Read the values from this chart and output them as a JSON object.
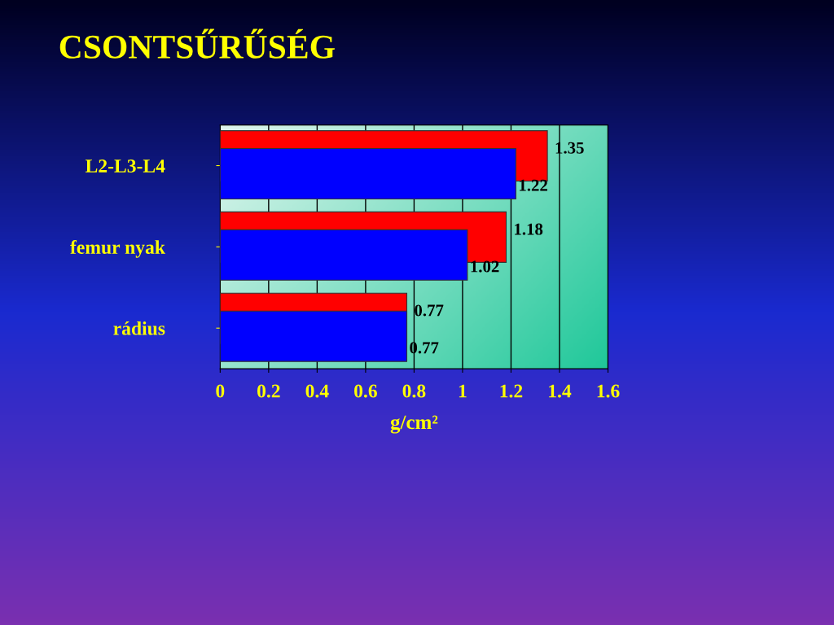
{
  "chart_data": {
    "type": "bar",
    "orientation": "horizontal",
    "title": "CSONTSŰRŰSÉG",
    "xlabel": "g/cm²",
    "categories": [
      "L2-L3-L4",
      "femur nyak",
      "rádius"
    ],
    "series": [
      {
        "color": "#ff0000",
        "values": [
          1.35,
          1.18,
          0.77
        ]
      },
      {
        "color": "#0000ff",
        "values": [
          1.22,
          1.02,
          0.77
        ]
      }
    ],
    "xlim": [
      0,
      1.6
    ],
    "xticks": [
      0,
      0.2,
      0.4,
      0.6,
      0.8,
      1,
      1.2,
      1.4,
      1.6
    ],
    "grid": "x",
    "data_labels": true,
    "legend": false
  }
}
